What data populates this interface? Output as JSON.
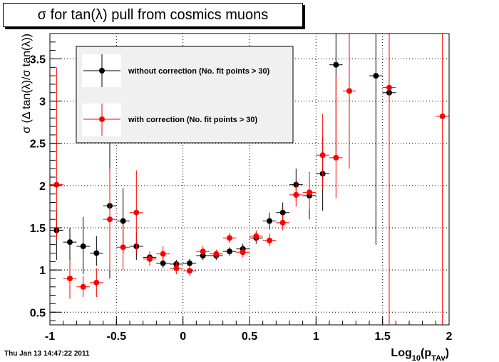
{
  "title": "σ for tan(λ) pull from cosmics muons",
  "timestamp": "Thu Jan 13 14:47:22 2011",
  "colors": {
    "series1": "#000000",
    "series2": "#ff0000",
    "legend_bg": "#f0f0f0"
  },
  "chart_data": {
    "type": "scatter",
    "xlabel": "Log_10(p_TAv)",
    "ylabel": "σ (Δ tan(λ)/σ tan(λ))",
    "xlim": [
      -1,
      2
    ],
    "ylim": [
      0.35,
      3.8
    ],
    "xticks": [
      "-1",
      "-0.5",
      "0",
      "0.5",
      "1",
      "1.5",
      "2"
    ],
    "yticks": [
      "0.5",
      "1",
      "1.5",
      "2",
      "2.5",
      "3",
      "3.5"
    ],
    "grid": true,
    "legend_position": "top-left",
    "series": [
      {
        "name": "without correction (No. fit points > 30)",
        "points": [
          {
            "x": -0.95,
            "y": 1.47,
            "ylo": 1.12,
            "yhi": 1.7
          },
          {
            "x": -0.85,
            "y": 1.33,
            "ylo": 1.02,
            "yhi": 1.5
          },
          {
            "x": -0.75,
            "y": 1.28,
            "ylo": 0.95,
            "yhi": 1.63
          },
          {
            "x": -0.65,
            "y": 1.2,
            "ylo": 1.05,
            "yhi": 1.4
          },
          {
            "x": -0.55,
            "y": 1.76,
            "ylo": 0.9,
            "yhi": 2.8
          },
          {
            "x": -0.45,
            "y": 1.58,
            "ylo": 1.2,
            "yhi": 1.97
          },
          {
            "x": -0.35,
            "y": 1.28,
            "ylo": 1.12,
            "yhi": 1.45
          },
          {
            "x": -0.25,
            "y": 1.15,
            "ylo": 1.1,
            "yhi": 1.2
          },
          {
            "x": -0.15,
            "y": 1.08,
            "ylo": 1.02,
            "yhi": 1.15
          },
          {
            "x": -0.05,
            "y": 1.07,
            "ylo": 1.02,
            "yhi": 1.12
          },
          {
            "x": 0.05,
            "y": 1.08,
            "ylo": 1.04,
            "yhi": 1.13
          },
          {
            "x": 0.15,
            "y": 1.17,
            "ylo": 1.12,
            "yhi": 1.22
          },
          {
            "x": 0.25,
            "y": 1.17,
            "ylo": 1.12,
            "yhi": 1.22
          },
          {
            "x": 0.35,
            "y": 1.22,
            "ylo": 1.17,
            "yhi": 1.27
          },
          {
            "x": 0.45,
            "y": 1.25,
            "ylo": 1.2,
            "yhi": 1.31
          },
          {
            "x": 0.55,
            "y": 1.38,
            "ylo": 1.31,
            "yhi": 1.45
          },
          {
            "x": 0.65,
            "y": 1.58,
            "ylo": 1.48,
            "yhi": 1.68
          },
          {
            "x": 0.75,
            "y": 1.68,
            "ylo": 1.57,
            "yhi": 1.8
          },
          {
            "x": 0.85,
            "y": 2.01,
            "ylo": 1.82,
            "yhi": 2.2
          },
          {
            "x": 0.95,
            "y": 1.88,
            "ylo": 1.6,
            "yhi": 2.16
          },
          {
            "x": 1.05,
            "y": 2.14,
            "ylo": 1.7,
            "yhi": 2.58
          },
          {
            "x": 1.15,
            "y": 3.43,
            "ylo": 2.3,
            "yhi": 3.8
          },
          {
            "x": 1.45,
            "y": 3.3,
            "ylo": 1.3,
            "yhi": 3.8
          },
          {
            "x": 1.55,
            "y": 3.1,
            "ylo": 2.95,
            "yhi": 3.25
          }
        ]
      },
      {
        "name": "with correction (No. fit points > 30)",
        "points": [
          {
            "x": -0.95,
            "y": 2.01,
            "ylo": 1.35,
            "yhi": 3.4
          },
          {
            "x": -0.85,
            "y": 0.9,
            "ylo": 0.66,
            "yhi": 1.12
          },
          {
            "x": -0.75,
            "y": 0.8,
            "ylo": 0.68,
            "yhi": 0.93
          },
          {
            "x": -0.65,
            "y": 0.85,
            "ylo": 0.68,
            "yhi": 1.02
          },
          {
            "x": -0.55,
            "y": 1.6,
            "ylo": 1.0,
            "yhi": 2.2
          },
          {
            "x": -0.45,
            "y": 1.27,
            "ylo": 1.0,
            "yhi": 1.55
          },
          {
            "x": -0.35,
            "y": 1.68,
            "ylo": 1.2,
            "yhi": 2.18
          },
          {
            "x": -0.25,
            "y": 1.13,
            "ylo": 1.05,
            "yhi": 1.22
          },
          {
            "x": -0.15,
            "y": 1.19,
            "ylo": 1.1,
            "yhi": 1.28
          },
          {
            "x": -0.05,
            "y": 1.02,
            "ylo": 0.95,
            "yhi": 1.1
          },
          {
            "x": 0.05,
            "y": 0.99,
            "ylo": 0.93,
            "yhi": 1.05
          },
          {
            "x": 0.15,
            "y": 1.22,
            "ylo": 1.17,
            "yhi": 1.28
          },
          {
            "x": 0.25,
            "y": 1.19,
            "ylo": 1.14,
            "yhi": 1.24
          },
          {
            "x": 0.35,
            "y": 1.38,
            "ylo": 1.32,
            "yhi": 1.44
          },
          {
            "x": 0.45,
            "y": 1.21,
            "ylo": 1.15,
            "yhi": 1.27
          },
          {
            "x": 0.55,
            "y": 1.4,
            "ylo": 1.33,
            "yhi": 1.47
          },
          {
            "x": 0.65,
            "y": 1.35,
            "ylo": 1.28,
            "yhi": 1.43
          },
          {
            "x": 0.75,
            "y": 1.56,
            "ylo": 1.47,
            "yhi": 1.66
          },
          {
            "x": 0.85,
            "y": 1.89,
            "ylo": 1.75,
            "yhi": 2.03
          },
          {
            "x": 0.95,
            "y": 1.92,
            "ylo": 1.72,
            "yhi": 2.15
          },
          {
            "x": 1.05,
            "y": 2.36,
            "ylo": 1.95,
            "yhi": 2.85
          },
          {
            "x": 1.15,
            "y": 2.33,
            "ylo": 1.85,
            "yhi": 3.3
          },
          {
            "x": 1.25,
            "y": 3.12,
            "ylo": 2.2,
            "yhi": 3.8
          },
          {
            "x": 1.55,
            "y": 3.16,
            "ylo": 0.35,
            "yhi": 3.8
          },
          {
            "x": 1.95,
            "y": 2.82,
            "ylo": 0.35,
            "yhi": 3.8
          }
        ]
      }
    ]
  }
}
